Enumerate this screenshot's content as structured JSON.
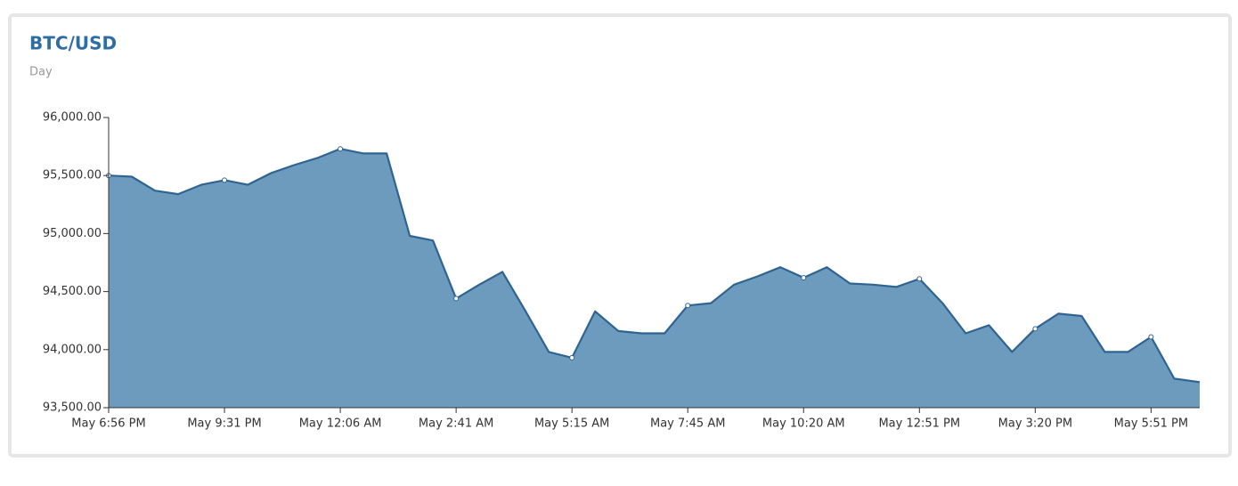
{
  "chart_data": {
    "type": "area",
    "title": "BTC/USD",
    "subtitle": "Day",
    "x": [
      0,
      0.2,
      0.4,
      0.6,
      0.8,
      1,
      1.2,
      1.4,
      1.6,
      1.8,
      2,
      2.2,
      2.4,
      2.6,
      2.8,
      3,
      3.2,
      3.4,
      3.6,
      3.8,
      4,
      4.2,
      4.4,
      4.6,
      4.8,
      5,
      5.2,
      5.4,
      5.6,
      5.8,
      6,
      6.2,
      6.4,
      6.6,
      6.8,
      7,
      7.2,
      7.4,
      7.6,
      7.8,
      8,
      8.2,
      8.4,
      8.6,
      8.8,
      9,
      9.2,
      9.42
    ],
    "series": [
      {
        "name": "BTC/USD",
        "color": "#6d9bbe",
        "line_color": "#2f6492",
        "values": [
          95500,
          95490,
          95370,
          95340,
          95420,
          95460,
          95420,
          95520,
          95590,
          95650,
          95730,
          95690,
          95690,
          94980,
          94940,
          94440,
          94560,
          94670,
          94330,
          93980,
          93930,
          94330,
          94160,
          94140,
          94140,
          94380,
          94400,
          94560,
          94630,
          94710,
          94620,
          94710,
          94570,
          94560,
          94540,
          94610,
          94400,
          94140,
          94210,
          93980,
          94180,
          94310,
          94290,
          93980,
          93980,
          94110,
          93750,
          93720
        ]
      }
    ],
    "xlim": [
      0,
      9.42
    ],
    "xticks": [
      {
        "value": 0,
        "label": "May 6:56 PM"
      },
      {
        "value": 1,
        "label": "May 9:31 PM"
      },
      {
        "value": 2,
        "label": "May 12:06 AM"
      },
      {
        "value": 3,
        "label": "May 2:41 AM"
      },
      {
        "value": 4,
        "label": "May 5:15 AM"
      },
      {
        "value": 5,
        "label": "May 7:45 AM"
      },
      {
        "value": 6,
        "label": "May 10:20 AM"
      },
      {
        "value": 7,
        "label": "May 12:51 PM"
      },
      {
        "value": 8,
        "label": "May 3:20 PM"
      },
      {
        "value": 9,
        "label": "May 5:51 PM"
      }
    ],
    "ylim": [
      93500,
      96000
    ],
    "yticks": [
      {
        "value": 93500,
        "label": "93,500.00"
      },
      {
        "value": 94000,
        "label": "94,000.00"
      },
      {
        "value": 94500,
        "label": "94,500.00"
      },
      {
        "value": 95000,
        "label": "95,000.00"
      },
      {
        "value": 95500,
        "label": "95,500.00"
      },
      {
        "value": 96000,
        "label": "96,000.00"
      }
    ],
    "grid": false
  }
}
